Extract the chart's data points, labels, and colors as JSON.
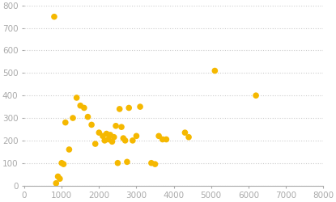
{
  "x": [
    800,
    850,
    900,
    950,
    1000,
    1050,
    1100,
    1200,
    1300,
    1400,
    1500,
    1600,
    1700,
    1800,
    1900,
    2000,
    2100,
    2150,
    2200,
    2250,
    2300,
    2350,
    2400,
    2450,
    2500,
    2550,
    2600,
    2650,
    2700,
    2750,
    2800,
    2900,
    3000,
    3100,
    3400,
    3500,
    3600,
    3700,
    3800,
    4300,
    4400,
    5100,
    6200
  ],
  "y": [
    750,
    10,
    40,
    30,
    100,
    95,
    280,
    160,
    300,
    390,
    355,
    345,
    305,
    270,
    185,
    235,
    220,
    200,
    230,
    205,
    225,
    195,
    215,
    265,
    100,
    340,
    260,
    210,
    200,
    105,
    345,
    200,
    220,
    350,
    100,
    95,
    220,
    205,
    205,
    235,
    215,
    510,
    400
  ],
  "dot_color": "#F5B800",
  "dot_size": 30,
  "xlim": [
    0,
    8000
  ],
  "ylim": [
    0,
    800
  ],
  "xticks": [
    0,
    1000,
    2000,
    3000,
    4000,
    5000,
    6000,
    7000,
    8000
  ],
  "yticks": [
    0,
    100,
    200,
    300,
    400,
    500,
    600,
    700,
    800
  ],
  "grid_color": "#cccccc",
  "bg_color": "#ffffff",
  "tick_color": "#aaaaaa"
}
